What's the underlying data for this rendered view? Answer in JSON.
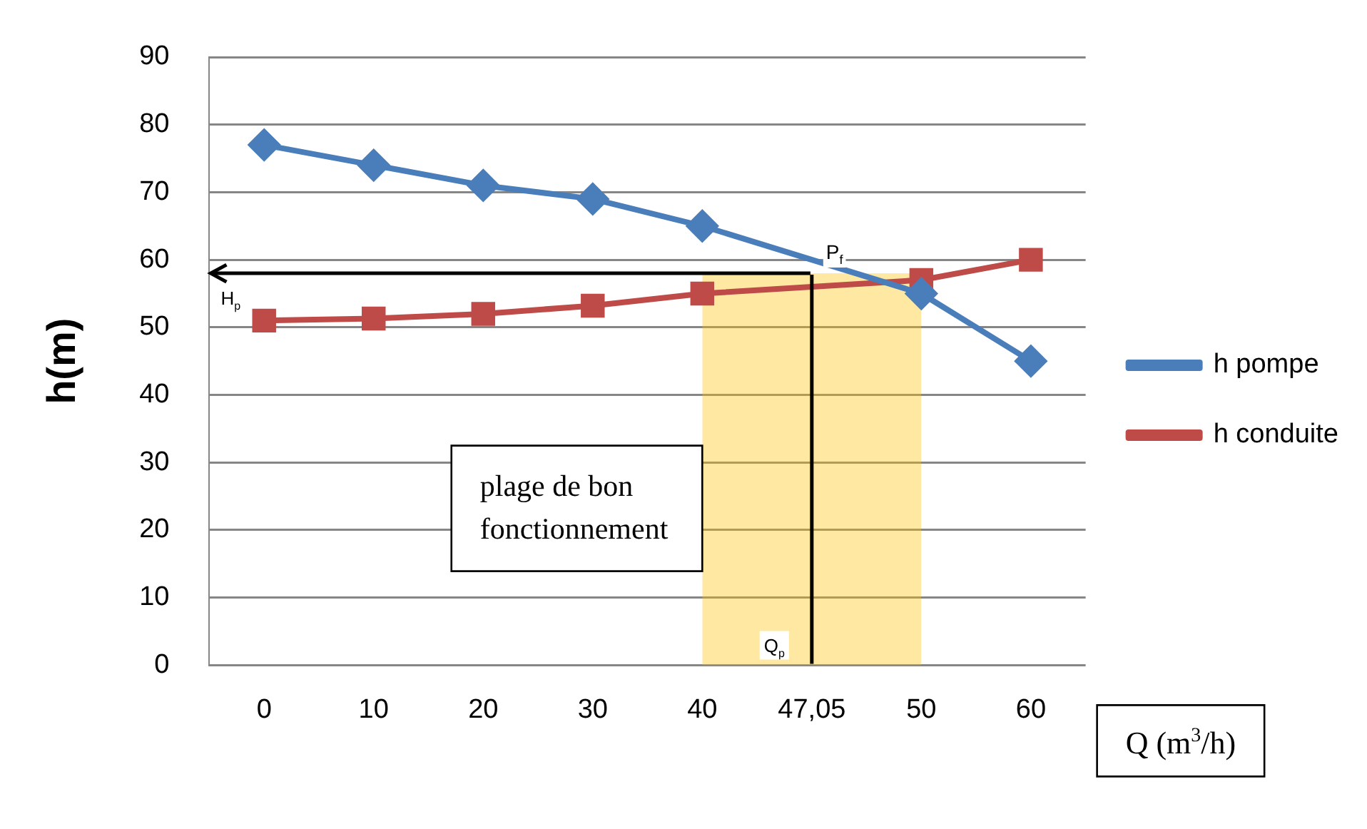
{
  "chart_data": {
    "type": "line",
    "xlabel": "Q (m$^{3}$/h)",
    "ylabel": "h(m)",
    "categories": [
      "0",
      "10",
      "20",
      "30",
      "40",
      "47,05",
      "50",
      "60"
    ],
    "series": [
      {
        "name": "h pompe",
        "color": "#4a7ebb",
        "marker": "diamond",
        "values": [
          77,
          74,
          71,
          69,
          65,
          null,
          55,
          45
        ]
      },
      {
        "name": "h conduite",
        "color": "#be4b48",
        "marker": "square",
        "values": [
          51,
          51.3,
          52,
          53.2,
          55,
          null,
          57,
          60
        ]
      }
    ],
    "ylim": [
      0,
      90
    ],
    "yticks": [
      0,
      10,
      20,
      30,
      40,
      50,
      60,
      70,
      80,
      90
    ],
    "grid": "y",
    "legend": "right",
    "ref_lines": [
      {
        "axis": "y",
        "value": 58,
        "label": "H$_{p}$",
        "color": "#000000"
      },
      {
        "axis": "x",
        "value": "47,05",
        "label": "Q$_{p}$",
        "color": "#000000"
      }
    ],
    "bands": [
      {
        "axis": "x",
        "from": "40",
        "to": "50",
        "label": "plage de bon fonctionnement",
        "color": "#ffc000"
      }
    ],
    "annotations": [
      "P$_{f}$"
    ]
  }
}
